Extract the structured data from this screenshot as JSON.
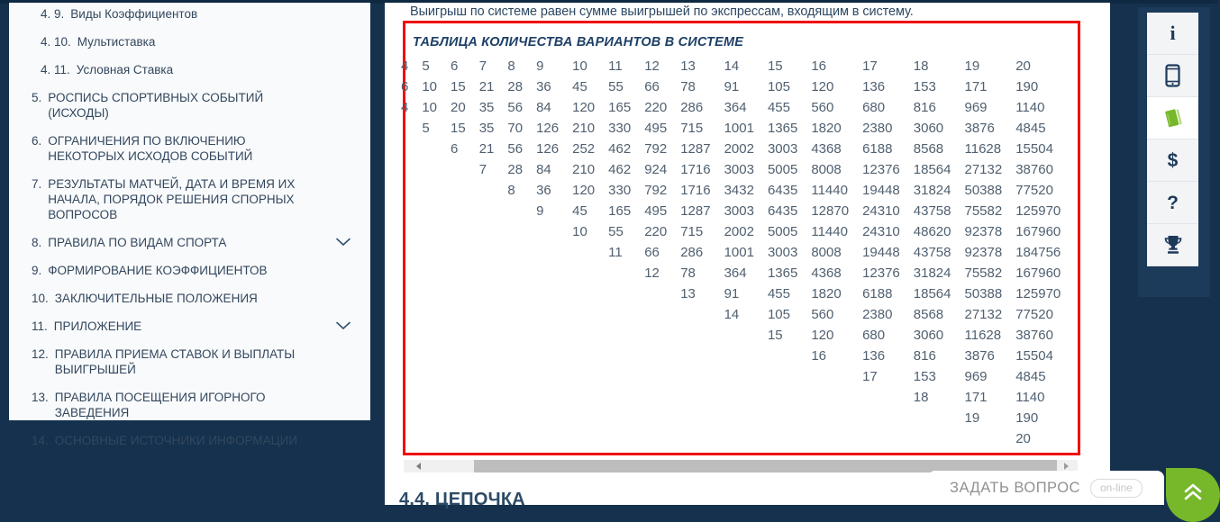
{
  "colors": {
    "background_navy": "#15314e",
    "table_border_red": "#f20d0d",
    "accent_green": "#76b82a",
    "text_navy": "#2d4863",
    "table_text": "#506070"
  },
  "sidebar": {
    "items": [
      {
        "num": "4. 9.",
        "text": "Виды Коэффициентов",
        "sub": true,
        "chevron": false
      },
      {
        "num": "4. 10.",
        "text": "Мультиставка",
        "sub": true,
        "chevron": false
      },
      {
        "num": "4. 11.",
        "text": "Условная Ставка",
        "sub": true,
        "chevron": false
      },
      {
        "num": "5.",
        "text": "РОСПИСЬ СПОРТИВНЫХ СОБЫТИЙ (ИСХОДЫ)",
        "sub": false,
        "chevron": false
      },
      {
        "num": "6.",
        "text": "ОГРАНИЧЕНИЯ ПО ВКЛЮЧЕНИЮ НЕКОТОРЫХ ИСХОДОВ СОБЫТИЙ",
        "sub": false,
        "chevron": false
      },
      {
        "num": "7.",
        "text": "РЕЗУЛЬТАТЫ МАТЧЕЙ, ДАТА И ВРЕМЯ ИХ НАЧАЛА, ПОРЯДОК РЕШЕНИЯ СПОРНЫХ ВОПРОСОВ",
        "sub": false,
        "chevron": false
      },
      {
        "num": "8.",
        "text": "ПРАВИЛА ПО ВИДАМ СПОРТА",
        "sub": false,
        "chevron": true
      },
      {
        "num": "9.",
        "text": "ФОРМИРОВАНИЕ КОЭФФИЦИЕНТОВ",
        "sub": false,
        "chevron": false
      },
      {
        "num": "10.",
        "text": "ЗАКЛЮЧИТЕЛЬНЫЕ ПОЛОЖЕНИЯ",
        "sub": false,
        "chevron": false
      },
      {
        "num": "11.",
        "text": "ПРИЛОЖЕНИЕ",
        "sub": false,
        "chevron": true
      },
      {
        "num": "12.",
        "text": "ПРАВИЛА ПРИЕМА СТАВОК И ВЫПЛАТЫ ВЫИГРЫШЕЙ",
        "sub": false,
        "chevron": false
      },
      {
        "num": "13.",
        "text": "ПРАВИЛА ПОСЕЩЕНИЯ ИГОРНОГО ЗАВЕДЕНИЯ",
        "sub": false,
        "chevron": false
      },
      {
        "num": "14.",
        "text": "ОСНОВНЫЕ ИСТОЧНИКИ ИНФОРМАЦИИ",
        "sub": false,
        "chevron": false
      }
    ]
  },
  "content": {
    "intro_text": "Выигрыш по системе равен сумме выигрышей по экспрессам, входящим в систему.",
    "next_section_heading": "4.4. ЦЕПОЧКА"
  },
  "system_table": {
    "title": "ТАБЛИЦА КОЛИЧЕСТВА ВАРИАНТОВ В СИСТЕМЕ",
    "rows": [
      [
        "4",
        "5",
        "6",
        "7",
        "8",
        "9",
        "10",
        "11",
        "12",
        "13",
        "14",
        "15",
        "16",
        "17",
        "18",
        "19",
        "20"
      ],
      [
        "6",
        "10",
        "15",
        "21",
        "28",
        "36",
        "45",
        "55",
        "66",
        "78",
        "91",
        "105",
        "120",
        "136",
        "153",
        "171",
        "190"
      ],
      [
        "4",
        "10",
        "20",
        "35",
        "56",
        "84",
        "120",
        "165",
        "220",
        "286",
        "364",
        "455",
        "560",
        "680",
        "816",
        "969",
        "1140"
      ],
      [
        "",
        "5",
        "15",
        "35",
        "70",
        "126",
        "210",
        "330",
        "495",
        "715",
        "1001",
        "1365",
        "1820",
        "2380",
        "3060",
        "3876",
        "4845"
      ],
      [
        "",
        "",
        "6",
        "21",
        "56",
        "126",
        "252",
        "462",
        "792",
        "1287",
        "2002",
        "3003",
        "4368",
        "6188",
        "8568",
        "11628",
        "15504"
      ],
      [
        "",
        "",
        "",
        "7",
        "28",
        "84",
        "210",
        "462",
        "924",
        "1716",
        "3003",
        "5005",
        "8008",
        "12376",
        "18564",
        "27132",
        "38760"
      ],
      [
        "",
        "",
        "",
        "",
        "8",
        "36",
        "120",
        "330",
        "792",
        "1716",
        "3432",
        "6435",
        "11440",
        "19448",
        "31824",
        "50388",
        "77520"
      ],
      [
        "",
        "",
        "",
        "",
        "",
        "9",
        "45",
        "165",
        "495",
        "1287",
        "3003",
        "6435",
        "12870",
        "24310",
        "43758",
        "75582",
        "125970"
      ],
      [
        "",
        "",
        "",
        "",
        "",
        "",
        "10",
        "55",
        "220",
        "715",
        "2002",
        "5005",
        "11440",
        "24310",
        "48620",
        "92378",
        "167960"
      ],
      [
        "",
        "",
        "",
        "",
        "",
        "",
        "",
        "11",
        "66",
        "286",
        "1001",
        "3003",
        "8008",
        "19448",
        "43758",
        "92378",
        "184756"
      ],
      [
        "",
        "",
        "",
        "",
        "",
        "",
        "",
        "",
        "12",
        "78",
        "364",
        "1365",
        "4368",
        "12376",
        "31824",
        "75582",
        "167960"
      ],
      [
        "",
        "",
        "",
        "",
        "",
        "",
        "",
        "",
        "",
        "13",
        "91",
        "455",
        "1820",
        "6188",
        "18564",
        "50388",
        "125970"
      ],
      [
        "",
        "",
        "",
        "",
        "",
        "",
        "",
        "",
        "",
        "",
        "14",
        "105",
        "560",
        "2380",
        "8568",
        "27132",
        "77520"
      ],
      [
        "",
        "",
        "",
        "",
        "",
        "",
        "",
        "",
        "",
        "",
        "",
        "15",
        "120",
        "680",
        "3060",
        "11628",
        "38760"
      ],
      [
        "",
        "",
        "",
        "",
        "",
        "",
        "",
        "",
        "",
        "",
        "",
        "",
        "16",
        "136",
        "816",
        "3876",
        "15504"
      ],
      [
        "",
        "",
        "",
        "",
        "",
        "",
        "",
        "",
        "",
        "",
        "",
        "",
        "",
        "17",
        "153",
        "969",
        "4845"
      ],
      [
        "",
        "",
        "",
        "",
        "",
        "",
        "",
        "",
        "",
        "",
        "",
        "",
        "",
        "",
        "18",
        "171",
        "1140"
      ],
      [
        "",
        "",
        "",
        "",
        "",
        "",
        "",
        "",
        "",
        "",
        "",
        "",
        "",
        "",
        "",
        "19",
        "190"
      ],
      [
        "",
        "",
        "",
        "",
        "",
        "",
        "",
        "",
        "",
        "",
        "",
        "",
        "",
        "",
        "",
        "",
        "20"
      ]
    ]
  },
  "right_rail": {
    "icons": [
      {
        "name": "info-icon",
        "glyph": "i"
      },
      {
        "name": "phone-icon",
        "glyph": ""
      },
      {
        "name": "book-icon",
        "glyph": ""
      },
      {
        "name": "dollar-icon",
        "glyph": "$"
      },
      {
        "name": "question-icon",
        "glyph": "?"
      },
      {
        "name": "trophy-icon",
        "glyph": ""
      }
    ],
    "active_index": 2
  },
  "ask_question": {
    "label": "ЗАДАТЬ ВОПРОС",
    "badge": "on-line"
  }
}
